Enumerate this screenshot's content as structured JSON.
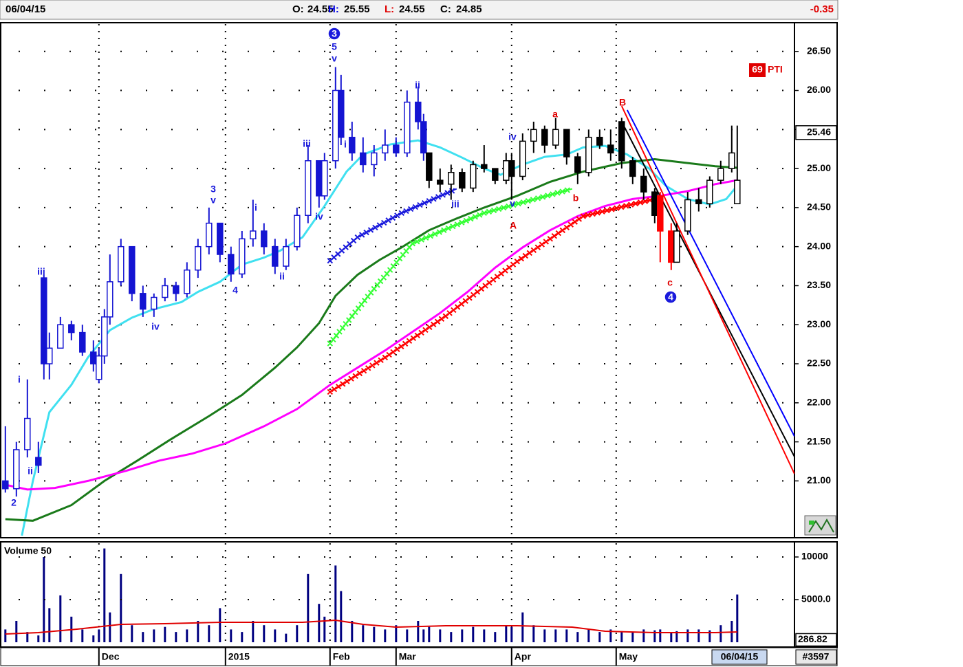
{
  "header": {
    "date": "06/04/15",
    "open": {
      "label": "O:",
      "value": 24.55
    },
    "high": {
      "label": "H:",
      "value": 25.55
    },
    "low": {
      "label": "L:",
      "value": 24.55
    },
    "close": {
      "label": "C:",
      "value": 24.85
    },
    "change": -0.35
  },
  "footer_id": "#3597",
  "chart_data": [
    {
      "type": "candlestick",
      "xlim": [
        -0.6,
        143.4
      ],
      "ylim": [
        20.29,
        26.85
      ],
      "yticks": [
        {
          "value": 21,
          "label": "21.00"
        },
        {
          "value": 21.5,
          "label": "21.50"
        },
        {
          "value": 22,
          "label": "22.00"
        },
        {
          "value": 22.5,
          "label": "22.50"
        },
        {
          "value": 23,
          "label": "23.00"
        },
        {
          "value": 23.5,
          "label": "23.50"
        },
        {
          "value": 24,
          "label": "24.00"
        },
        {
          "value": 24.5,
          "label": "24.50"
        },
        {
          "value": 25,
          "label": "25.00"
        },
        {
          "value": 25.5,
          "label": "25.50"
        },
        {
          "value": 26,
          "label": "26.00"
        },
        {
          "value": 26.5,
          "label": "26.50"
        }
      ],
      "xticks": [
        {
          "value": 17,
          "label": "Dec"
        },
        {
          "value": 40,
          "label": "2015"
        },
        {
          "value": 59,
          "label": "Feb"
        },
        {
          "value": 71,
          "label": "Mar"
        },
        {
          "value": 92,
          "label": "Apr"
        },
        {
          "value": 111,
          "label": "May"
        }
      ],
      "grid": true,
      "series": [
        {
          "color": "#1414d2",
          "x": [
            0,
            2,
            4,
            6,
            7,
            8,
            10,
            12,
            14,
            16,
            17,
            18,
            19,
            21,
            23,
            25,
            27,
            29,
            31,
            33,
            35,
            37,
            39,
            41,
            43,
            45,
            47,
            49,
            51,
            53,
            55,
            57,
            58,
            60,
            61,
            63,
            65,
            67,
            69,
            71,
            73,
            75,
            76
          ],
          "open": [
            21.0,
            20.9,
            21.4,
            21.3,
            23.6,
            22.5,
            22.7,
            23.0,
            22.9,
            22.65,
            22.3,
            22.6,
            23.1,
            23.55,
            24.0,
            23.4,
            23.2,
            23.35,
            23.5,
            23.4,
            23.7,
            24.0,
            24.3,
            23.9,
            23.65,
            24.1,
            24.2,
            24.0,
            23.75,
            24.0,
            24.4,
            25.1,
            24.65,
            25.1,
            26.0,
            25.4,
            25.2,
            25.05,
            25.2,
            25.3,
            25.2,
            25.85,
            25.6
          ],
          "high": [
            21.7,
            21.5,
            22.3,
            21.5,
            23.64,
            22.9,
            23.1,
            23.05,
            23.0,
            22.8,
            22.7,
            23.2,
            23.9,
            24.1,
            24.0,
            23.5,
            23.4,
            23.6,
            23.55,
            23.8,
            24.1,
            24.5,
            24.3,
            24.0,
            24.2,
            24.6,
            24.3,
            24.1,
            24.1,
            24.5,
            25.3,
            25.1,
            25.2,
            26.3,
            26.2,
            25.6,
            25.4,
            25.3,
            25.5,
            25.4,
            26.0,
            26.05,
            25.7
          ],
          "low": [
            20.85,
            20.8,
            21.3,
            21.1,
            22.3,
            22.3,
            22.7,
            22.8,
            22.6,
            22.4,
            22.25,
            22.5,
            23.0,
            23.5,
            23.3,
            23.1,
            23.1,
            23.3,
            23.3,
            23.35,
            23.6,
            23.9,
            23.8,
            23.55,
            23.6,
            24.0,
            23.9,
            23.65,
            23.7,
            23.95,
            24.3,
            24.5,
            24.6,
            25.0,
            25.3,
            25.1,
            24.95,
            24.9,
            25.1,
            25.15,
            25.15,
            25.5,
            25.1
          ],
          "close": [
            20.9,
            21.4,
            21.8,
            21.2,
            22.5,
            22.7,
            23.0,
            22.9,
            22.65,
            22.5,
            22.6,
            23.1,
            23.55,
            24.0,
            23.4,
            23.2,
            23.35,
            23.5,
            23.4,
            23.7,
            24.0,
            24.3,
            23.9,
            23.65,
            24.1,
            24.2,
            24.0,
            23.75,
            24.0,
            24.4,
            25.1,
            24.65,
            25.1,
            26.0,
            25.4,
            25.2,
            25.05,
            25.2,
            25.3,
            25.2,
            25.85,
            25.6,
            25.2
          ]
        },
        {
          "color": "#000000",
          "x": [
            77,
            79,
            81,
            83,
            85,
            87,
            89,
            91,
            92,
            94,
            96,
            98,
            100,
            102,
            104,
            106,
            108,
            110,
            112,
            114,
            116,
            118
          ],
          "open": [
            25.2,
            24.85,
            24.8,
            24.95,
            24.75,
            25.05,
            25.0,
            24.85,
            25.1,
            24.9,
            25.35,
            25.5,
            25.3,
            25.5,
            25.15,
            24.95,
            25.4,
            25.3,
            25.6,
            25.1,
            24.9,
            24.7
          ],
          "high": [
            25.2,
            25.0,
            25.05,
            25.0,
            25.1,
            25.3,
            25.0,
            25.2,
            25.2,
            25.45,
            25.6,
            25.55,
            25.65,
            25.5,
            25.2,
            25.5,
            25.5,
            25.5,
            25.65,
            25.15,
            25.0,
            24.75
          ],
          "low": [
            24.75,
            24.7,
            24.6,
            24.7,
            24.7,
            24.95,
            24.8,
            24.8,
            24.6,
            24.85,
            25.2,
            25.2,
            25.25,
            25.05,
            24.8,
            24.9,
            25.25,
            25.1,
            25.0,
            24.8,
            24.6,
            24.3
          ],
          "close": [
            24.85,
            24.8,
            24.95,
            24.75,
            25.05,
            25.0,
            24.85,
            25.1,
            24.9,
            25.35,
            25.5,
            25.3,
            25.5,
            25.15,
            24.95,
            25.4,
            25.3,
            25.2,
            25.1,
            24.9,
            24.7,
            24.4
          ]
        },
        {
          "color": "#ff0000",
          "x": [
            119,
            121
          ],
          "open": [
            24.65,
            24.2
          ],
          "high": [
            24.7,
            24.3
          ],
          "low": [
            23.8,
            23.7
          ],
          "close": [
            24.2,
            23.8
          ]
        },
        {
          "color": "#000000",
          "x": [
            122,
            124,
            126,
            128,
            130,
            132,
            133
          ],
          "open": [
            23.8,
            24.2,
            24.6,
            24.55,
            24.85,
            25.0,
            24.55
          ],
          "high": [
            24.3,
            24.7,
            24.75,
            24.9,
            25.1,
            25.55,
            25.55
          ],
          "low": [
            23.8,
            24.15,
            24.45,
            24.5,
            24.8,
            24.95,
            24.55
          ],
          "close": [
            24.2,
            24.6,
            24.55,
            24.85,
            25.0,
            25.2,
            24.85
          ]
        }
      ],
      "lines": [
        {
          "color": "#40e0f0",
          "x": [
            3,
            5,
            8,
            12,
            15,
            19,
            23,
            27,
            32,
            35,
            39,
            43,
            47,
            50,
            54,
            58,
            62,
            65,
            70,
            75,
            79,
            83,
            87,
            90,
            94,
            98,
            102,
            105,
            109,
            113,
            117,
            120,
            124,
            128,
            131,
            133
          ],
          "values": [
            20.3,
            21.0,
            21.88,
            22.23,
            22.58,
            22.93,
            23.09,
            23.2,
            23.29,
            23.42,
            23.55,
            23.77,
            23.86,
            23.95,
            24.12,
            24.52,
            24.96,
            25.18,
            25.31,
            25.36,
            25.27,
            25.14,
            25.0,
            24.92,
            25.05,
            25.15,
            25.18,
            25.27,
            25.29,
            25.18,
            25.0,
            24.78,
            24.61,
            24.54,
            24.61,
            24.78
          ]
        },
        {
          "color": "#1a7a1a",
          "x": [
            0,
            5,
            12,
            18,
            24,
            30,
            37,
            43,
            49,
            53,
            57,
            60,
            64,
            68,
            72,
            77,
            82,
            87,
            93,
            99,
            105,
            112,
            118,
            124,
            129,
            133
          ],
          "values": [
            20.51,
            20.49,
            20.69,
            21.0,
            21.26,
            21.53,
            21.83,
            22.1,
            22.45,
            22.71,
            23.02,
            23.37,
            23.64,
            23.83,
            23.99,
            24.21,
            24.36,
            24.5,
            24.65,
            24.83,
            24.96,
            25.07,
            25.12,
            25.07,
            25.03,
            25.01
          ]
        },
        {
          "color": "#ff00ff",
          "x": [
            0,
            4,
            9,
            15,
            22,
            28,
            34,
            40,
            47,
            53,
            59,
            64,
            69,
            74,
            79,
            84,
            89,
            94,
            99,
            104,
            109,
            114,
            119,
            124,
            129,
            133
          ],
          "values": [
            20.95,
            20.89,
            20.91,
            21.0,
            21.13,
            21.26,
            21.35,
            21.48,
            21.7,
            21.92,
            22.23,
            22.45,
            22.67,
            22.91,
            23.15,
            23.42,
            23.73,
            23.99,
            24.21,
            24.39,
            24.52,
            24.61,
            24.65,
            24.71,
            24.8,
            24.85
          ]
        },
        {
          "color": "#1a1adc",
          "crosses": true,
          "x": [
            59,
            64,
            72,
            82
          ],
          "values": [
            23.82,
            24.12,
            24.43,
            24.74
          ]
        },
        {
          "color": "#33ff33",
          "crosses": true,
          "x": [
            59,
            67,
            74,
            87,
            103
          ],
          "values": [
            22.76,
            23.46,
            24.04,
            24.43,
            24.74
          ]
        },
        {
          "color": "#ff0000",
          "crosses": true,
          "x": [
            59,
            69,
            80,
            93,
            105,
            118
          ],
          "values": [
            22.14,
            22.58,
            23.11,
            23.81,
            24.39,
            24.61
          ]
        }
      ],
      "trend_lines": [
        {
          "color": "#0000ff",
          "x": [
            113,
            143.4
          ],
          "values": [
            25.75,
            21.57
          ]
        },
        {
          "color": "#000000",
          "x": [
            112,
            143.4
          ],
          "values": [
            25.6,
            21.31
          ]
        },
        {
          "color": "#ff0000",
          "x": [
            112,
            143.4
          ],
          "values": [
            25.8,
            21.09
          ]
        }
      ],
      "annotations": [
        {
          "text": "2",
          "color": "#1a1adc"
        },
        {
          "text": "i",
          "color": "#1a1adc"
        },
        {
          "text": "ii",
          "color": "#1a1adc"
        },
        {
          "text": "iii",
          "color": "#1a1adc"
        },
        {
          "text": "iv",
          "color": "#1a1adc"
        },
        {
          "text": "3",
          "color": "#1a1adc"
        },
        {
          "text": "v",
          "color": "#1a1adc"
        },
        {
          "text": "4",
          "color": "#1a1adc"
        },
        {
          "text": "i",
          "color": "#1a1adc"
        },
        {
          "text": "ii",
          "color": "#1a1adc"
        },
        {
          "text": "iii",
          "color": "#1a1adc"
        },
        {
          "text": "iv",
          "color": "#1a1adc"
        },
        {
          "text": "5",
          "color": "#1a1adc"
        },
        {
          "text": "v",
          "color": "#1a1adc"
        },
        {
          "text": "i",
          "color": "#1a1adc"
        },
        {
          "text": "ii",
          "color": "#1a1adc"
        },
        {
          "text": "iii",
          "color": "#1a1adc"
        },
        {
          "text": "iv",
          "color": "#1a1adc"
        },
        {
          "text": "v",
          "color": "#1a1adc"
        },
        {
          "text": "A",
          "color": "#e00000"
        },
        {
          "text": "a",
          "color": "#e00000"
        },
        {
          "text": "b",
          "color": "#e00000"
        },
        {
          "text": "B",
          "color": "#e00000"
        },
        {
          "text": "c",
          "color": "#e00000"
        },
        {
          "text": "3",
          "color": "#1a1adc",
          "circled": true
        },
        {
          "text": "4",
          "color": "#1a1adc",
          "circled": true
        }
      ],
      "marker": 25.46,
      "pti": {
        "value": 69,
        "label": "PTI",
        "color": "#e00000"
      }
    },
    {
      "type": "bar",
      "title": "Volume 50",
      "color": "#000080",
      "ylim": [
        -484,
        11613
      ],
      "yticks": [
        {
          "value": 5000,
          "label": "5000.0"
        },
        10000
      ],
      "marker": 286.82,
      "x": [
        0,
        2,
        4,
        6,
        7,
        8,
        10,
        12,
        14,
        16,
        17,
        18,
        19,
        21,
        23,
        25,
        27,
        29,
        31,
        33,
        35,
        37,
        39,
        41,
        43,
        45,
        47,
        49,
        51,
        53,
        55,
        57,
        58,
        60,
        61,
        63,
        65,
        67,
        69,
        71,
        73,
        75,
        76,
        77,
        79,
        81,
        83,
        85,
        87,
        89,
        91,
        92,
        94,
        96,
        98,
        100,
        102,
        104,
        106,
        108,
        110,
        112,
        114,
        116,
        118,
        119,
        121,
        122,
        124,
        126,
        128,
        130,
        132,
        133
      ],
      "values": [
        1500,
        2500,
        1200,
        800,
        10000,
        4000,
        5500,
        3000,
        1500,
        800,
        1500,
        11000,
        3500,
        8000,
        2000,
        1200,
        1500,
        1800,
        1200,
        1500,
        2500,
        2000,
        4000,
        1500,
        1200,
        2500,
        2000,
        1500,
        1000,
        2000,
        8000,
        4500,
        3000,
        9000,
        6000,
        2500,
        2000,
        1800,
        1500,
        2000,
        1500,
        2500,
        1500,
        1800,
        1500,
        1200,
        1500,
        1800,
        1500,
        1200,
        2000,
        1800,
        3500,
        2000,
        1500,
        1500,
        1500,
        1200,
        1500,
        1200,
        1500,
        1300,
        1200,
        1500,
        1400,
        1500,
        1200,
        1300,
        1500,
        1500,
        1400,
        2000,
        2500,
        5600
      ],
      "ma": {
        "color": "#e00000",
        "x": [
          0,
          6,
          13,
          21,
          29,
          39,
          49,
          54,
          60,
          65,
          71,
          80,
          93,
          103,
          109,
          118,
          129,
          133
        ],
        "values": [
          968,
          1129,
          1532,
          2097,
          2177,
          2339,
          2339,
          2339,
          2581,
          2097,
          1774,
          1935,
          1935,
          1774,
          1290,
          1129,
          1129,
          1210
        ]
      }
    }
  ]
}
